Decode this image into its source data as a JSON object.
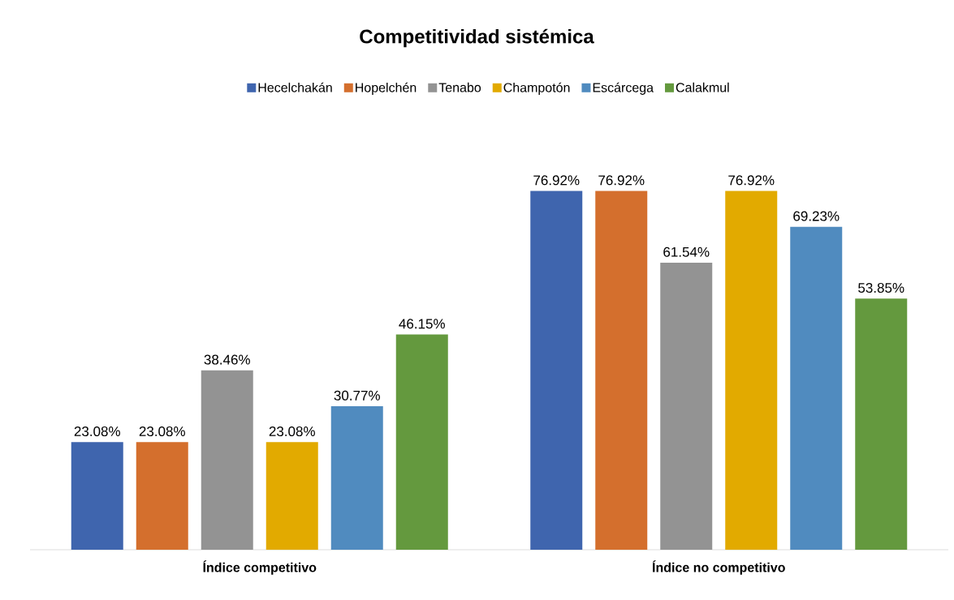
{
  "chart_data": {
    "type": "bar",
    "title": "Competitividad sistémica",
    "categories": [
      "Índice competitivo",
      "Índice no competitivo"
    ],
    "legend": "top",
    "series": [
      {
        "name": "Hecelchakán",
        "color": "#3f65ae",
        "values": [
          23.08,
          76.92
        ],
        "value_labels": [
          "23.08%",
          "76.92%"
        ]
      },
      {
        "name": "Hopelchén",
        "color": "#d46f2d",
        "values": [
          23.08,
          76.92
        ],
        "value_labels": [
          "23.08%",
          "76.92%"
        ]
      },
      {
        "name": "Tenabo",
        "color": "#939393",
        "values": [
          38.46,
          61.54
        ],
        "value_labels": [
          "38.46%",
          "61.54%"
        ]
      },
      {
        "name": "Champotón",
        "color": "#e2aa00",
        "values": [
          23.08,
          76.92
        ],
        "value_labels": [
          "23.08%",
          "76.92%"
        ]
      },
      {
        "name": "Escárcega",
        "color": "#508bbf",
        "values": [
          30.77,
          69.23
        ],
        "value_labels": [
          "30.77%",
          "69.23%"
        ]
      },
      {
        "name": "Calakmul",
        "color": "#64993e",
        "values": [
          46.15,
          53.85
        ],
        "value_labels": [
          "46.15%",
          "53.85%"
        ]
      }
    ]
  }
}
